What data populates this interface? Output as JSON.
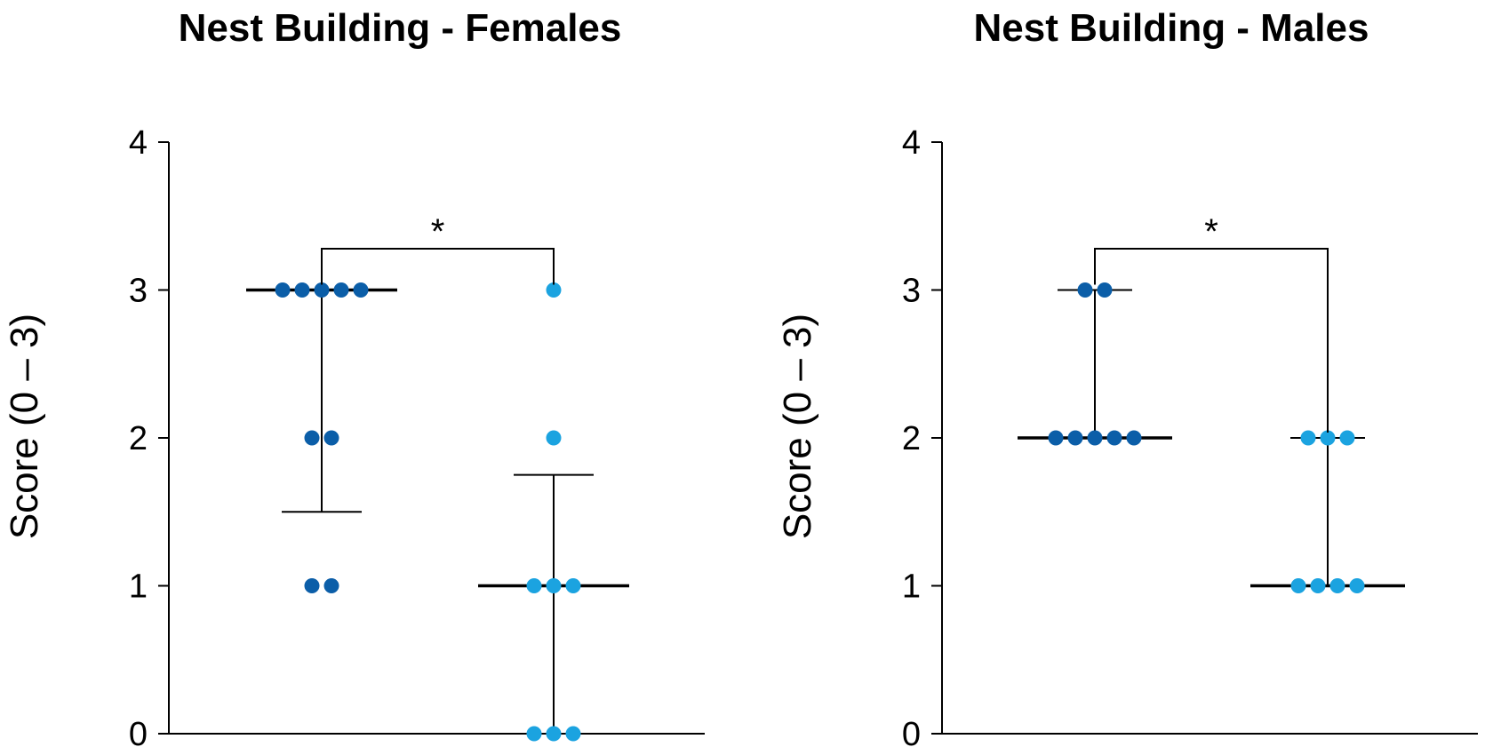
{
  "colors": {
    "group1": "#0b5ea8",
    "group2": "#1ba3e0",
    "axis": "#000000"
  },
  "chart_data": [
    {
      "type": "scatter",
      "title": "Nest Building - Females",
      "ylabel": "Score (0 – 3)",
      "xlabel": "",
      "ylim": [
        0,
        4
      ],
      "yticks": [
        "0",
        "1",
        "2",
        "3",
        "4"
      ],
      "grid": false,
      "series": [
        {
          "values": [
            3,
            3,
            3,
            3,
            3,
            2,
            2,
            1,
            1
          ],
          "median": 3,
          "error_low": 1.5,
          "error_high": 3
        },
        {
          "values": [
            3,
            2,
            1,
            1,
            1,
            0,
            0,
            0
          ],
          "median": 1,
          "error_low": 0,
          "error_high": 1.75
        }
      ],
      "significance": "*"
    },
    {
      "type": "scatter",
      "title": "Nest Building - Males",
      "ylabel": "Score (0 – 3)",
      "xlabel": "",
      "ylim": [
        0,
        4
      ],
      "yticks": [
        "0",
        "1",
        "2",
        "3",
        "4"
      ],
      "grid": false,
      "series": [
        {
          "values": [
            3,
            3,
            2,
            2,
            2,
            2,
            2
          ],
          "median": 2,
          "error_low": 2,
          "error_high": 3
        },
        {
          "values": [
            2,
            2,
            2,
            1,
            1,
            1,
            1
          ],
          "median": 1,
          "error_low": 1,
          "error_high": 2
        }
      ],
      "significance": "*"
    }
  ]
}
